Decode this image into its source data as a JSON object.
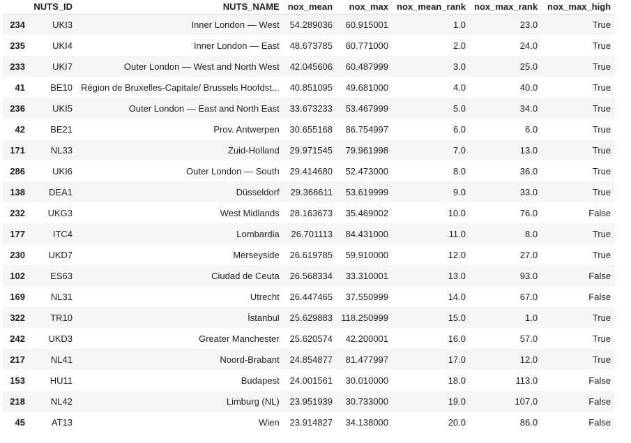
{
  "table": {
    "columns": [
      "",
      "NUTS_ID",
      "NUTS_NAME",
      "nox_mean",
      "nox_max",
      "nox_mean_rank",
      "nox_max_rank",
      "nox_max_high"
    ],
    "rows": [
      [
        "234",
        "UKI3",
        "Inner London — West",
        "54.289036",
        "60.915001",
        "1.0",
        "23.0",
        "True"
      ],
      [
        "235",
        "UKI4",
        "Inner London — East",
        "48.673785",
        "60.771000",
        "2.0",
        "24.0",
        "True"
      ],
      [
        "233",
        "UKI7",
        "Outer London — West and North West",
        "42.045606",
        "60.487999",
        "3.0",
        "25.0",
        "True"
      ],
      [
        "41",
        "BE10",
        "Région de Bruxelles-Capitale/ Brussels Hoofdst...",
        "40.851095",
        "49.681000",
        "4.0",
        "40.0",
        "True"
      ],
      [
        "236",
        "UKI5",
        "Outer London — East and North East",
        "33.673233",
        "53.467999",
        "5.0",
        "34.0",
        "True"
      ],
      [
        "42",
        "BE21",
        "Prov. Antwerpen",
        "30.655168",
        "86.754997",
        "6.0",
        "6.0",
        "True"
      ],
      [
        "171",
        "NL33",
        "Zuid-Holland",
        "29.971545",
        "79.961998",
        "7.0",
        "13.0",
        "True"
      ],
      [
        "286",
        "UKI6",
        "Outer London — South",
        "29.414680",
        "52.473000",
        "8.0",
        "36.0",
        "True"
      ],
      [
        "138",
        "DEA1",
        "Düsseldorf",
        "29.366611",
        "53.619999",
        "9.0",
        "33.0",
        "True"
      ],
      [
        "232",
        "UKG3",
        "West Midlands",
        "28.163673",
        "35.469002",
        "10.0",
        "76.0",
        "False"
      ],
      [
        "177",
        "ITC4",
        "Lombardia",
        "26.701113",
        "84.431000",
        "11.0",
        "8.0",
        "True"
      ],
      [
        "230",
        "UKD7",
        "Merseyside",
        "26.619785",
        "59.910000",
        "12.0",
        "27.0",
        "True"
      ],
      [
        "102",
        "ES63",
        "Ciudad de Ceuta",
        "26.568334",
        "33.310001",
        "13.0",
        "93.0",
        "False"
      ],
      [
        "169",
        "NL31",
        "Utrecht",
        "26.447465",
        "37.550999",
        "14.0",
        "67.0",
        "False"
      ],
      [
        "322",
        "TR10",
        "İstanbul",
        "25.629883",
        "118.250999",
        "15.0",
        "1.0",
        "True"
      ],
      [
        "242",
        "UKD3",
        "Greater Manchester",
        "25.620574",
        "42.200001",
        "16.0",
        "57.0",
        "True"
      ],
      [
        "217",
        "NL41",
        "Noord-Brabant",
        "24.854877",
        "81.477997",
        "17.0",
        "12.0",
        "True"
      ],
      [
        "153",
        "HU11",
        "Budapest",
        "24.001561",
        "30.010000",
        "18.0",
        "113.0",
        "False"
      ],
      [
        "218",
        "NL42",
        "Limburg (NL)",
        "23.951939",
        "30.733000",
        "19.0",
        "107.0",
        "False"
      ],
      [
        "45",
        "AT13",
        "Wien",
        "23.914827",
        "34.138000",
        "20.0",
        "86.0",
        "False"
      ]
    ]
  }
}
